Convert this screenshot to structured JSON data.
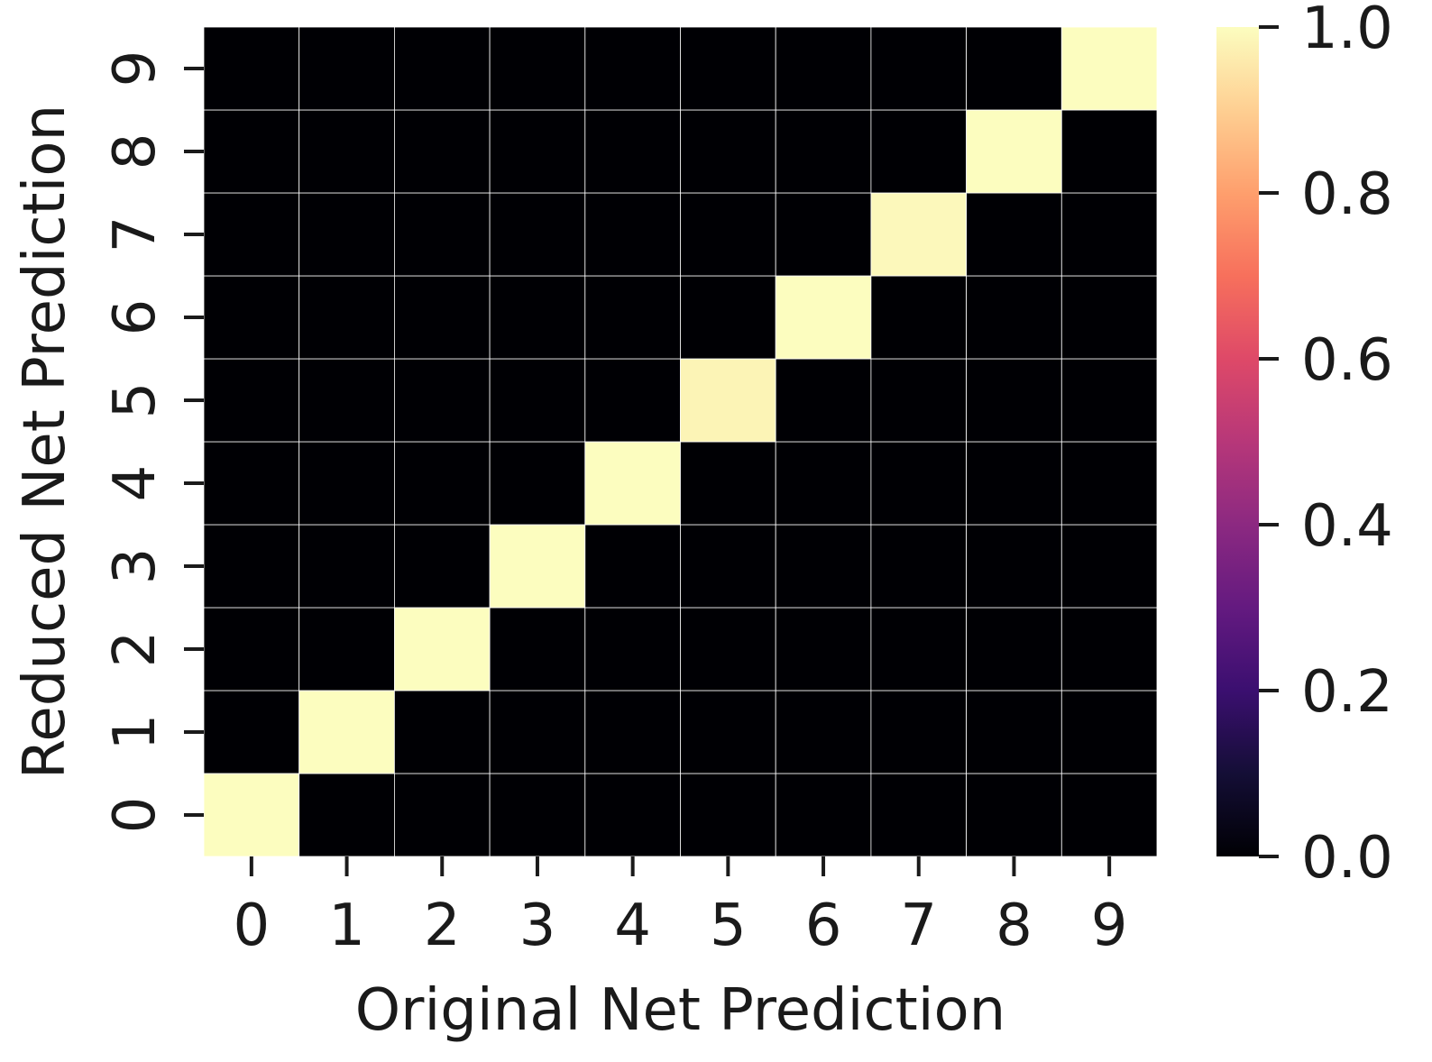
{
  "chart_data": {
    "type": "heatmap",
    "title": "",
    "xlabel": "Original Net Prediction",
    "ylabel": "Reduced Net Prediction",
    "x_categories": [
      "0",
      "1",
      "2",
      "3",
      "4",
      "5",
      "6",
      "7",
      "8",
      "9"
    ],
    "y_categories": [
      "0",
      "1",
      "2",
      "3",
      "4",
      "5",
      "6",
      "7",
      "8",
      "9"
    ],
    "values": [
      [
        1.0,
        0.0,
        0.0,
        0.0,
        0.0,
        0.0,
        0.0,
        0.0,
        0.0,
        0.0
      ],
      [
        0.0,
        1.0,
        0.0,
        0.0,
        0.0,
        0.0,
        0.0,
        0.0,
        0.0,
        0.0
      ],
      [
        0.0,
        0.0,
        1.0,
        0.0,
        0.0,
        0.0,
        0.0,
        0.0,
        0.0,
        0.0
      ],
      [
        0.0,
        0.0,
        0.0,
        1.0,
        0.0,
        0.0,
        0.0,
        0.0,
        0.0,
        0.0
      ],
      [
        0.0,
        0.0,
        0.0,
        0.0,
        1.0,
        0.0,
        0.0,
        0.0,
        0.0,
        0.0
      ],
      [
        0.0,
        0.0,
        0.0,
        0.0,
        0.0,
        0.98,
        0.0,
        0.0,
        0.0,
        0.0
      ],
      [
        0.0,
        0.0,
        0.0,
        0.0,
        0.0,
        0.0,
        1.0,
        0.0,
        0.0,
        0.0
      ],
      [
        0.0,
        0.0,
        0.0,
        0.0,
        0.0,
        0.0,
        0.0,
        0.99,
        0.0,
        0.0
      ],
      [
        0.0,
        0.0,
        0.0,
        0.0,
        0.0,
        0.0,
        0.0,
        0.0,
        1.0,
        0.0
      ],
      [
        0.0,
        0.0,
        0.0,
        0.0,
        0.0,
        0.0,
        0.0,
        0.0,
        0.0,
        1.0
      ]
    ],
    "values_orientation": "values[row][col] where row = Reduced Net Prediction (y), col = Original Net Prediction (x)",
    "colormap": "magma",
    "colorbar": {
      "range": [
        0.0,
        1.0
      ],
      "ticks": [
        0.0,
        0.2,
        0.4,
        0.6,
        0.8,
        1.0
      ],
      "tick_labels": [
        "0.0",
        "0.2",
        "0.4",
        "0.6",
        "0.8",
        "1.0"
      ]
    },
    "grid_line_color": "#ffffff"
  }
}
